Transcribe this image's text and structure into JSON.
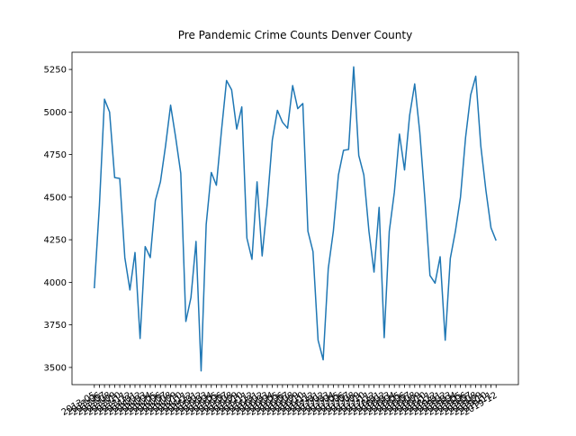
{
  "chart_data": {
    "type": "line",
    "title": "Pre Pandemic Crime Counts Denver County",
    "categories": [
      "2013-05",
      "2013-06",
      "2013-07",
      "2013-08",
      "2013-09",
      "2013-10",
      "2013-11",
      "2013-12",
      "2014-01",
      "2014-02",
      "2014-03",
      "2014-04",
      "2014-05",
      "2014-06",
      "2014-07",
      "2014-08",
      "2014-09",
      "2014-10",
      "2014-11",
      "2014-12",
      "2015-01",
      "2015-02",
      "2015-03",
      "2015-04",
      "2015-05",
      "2015-06",
      "2015-07",
      "2015-08",
      "2015-09",
      "2015-10",
      "2015-11",
      "2015-12",
      "2016-01",
      "2016-02",
      "2016-03",
      "2016-04",
      "2016-05",
      "2016-06",
      "2016-07",
      "2016-08",
      "2016-09",
      "2016-10",
      "2016-11",
      "2016-12",
      "2017-01",
      "2017-02",
      "2017-03",
      "2017-04",
      "2017-05",
      "2017-06",
      "2017-07",
      "2017-08",
      "2017-09",
      "2017-10",
      "2017-11",
      "2017-12",
      "2018-01",
      "2018-02",
      "2018-03",
      "2018-04",
      "2018-05",
      "2018-06",
      "2018-07",
      "2018-08",
      "2018-09",
      "2018-10",
      "2018-11",
      "2018-12",
      "2019-01",
      "2019-02",
      "2019-03",
      "2019-04",
      "2019-05",
      "2019-06",
      "2019-07",
      "2019-08",
      "2019-09",
      "2019-10",
      "2019-11",
      "2019-12"
    ],
    "values": [
      3965,
      4450,
      5075,
      5000,
      4615,
      4610,
      4145,
      3955,
      4175,
      3670,
      4210,
      4145,
      4480,
      4590,
      4800,
      5040,
      4850,
      4640,
      3770,
      3910,
      4240,
      3480,
      4340,
      4645,
      4570,
      4890,
      5185,
      5130,
      4900,
      5030,
      4260,
      4135,
      4590,
      4155,
      4460,
      4835,
      5010,
      4940,
      4905,
      5155,
      5020,
      5050,
      4300,
      4180,
      3660,
      3545,
      4080,
      4300,
      4630,
      4775,
      4780,
      5265,
      4745,
      4630,
      4300,
      4060,
      4440,
      3675,
      4300,
      4530,
      4870,
      4660,
      4980,
      5165,
      4880,
      4490,
      4040,
      3995,
      4150,
      3660,
      4140,
      4300,
      4500,
      4850,
      5100,
      5210,
      4800,
      4540,
      4320,
      4245
    ],
    "color": "#1f77b4",
    "ylim": [
      3399,
      5351
    ],
    "yticks": [
      3500,
      3750,
      4000,
      4250,
      4500,
      4750,
      5000,
      5250
    ],
    "grid": false
  }
}
